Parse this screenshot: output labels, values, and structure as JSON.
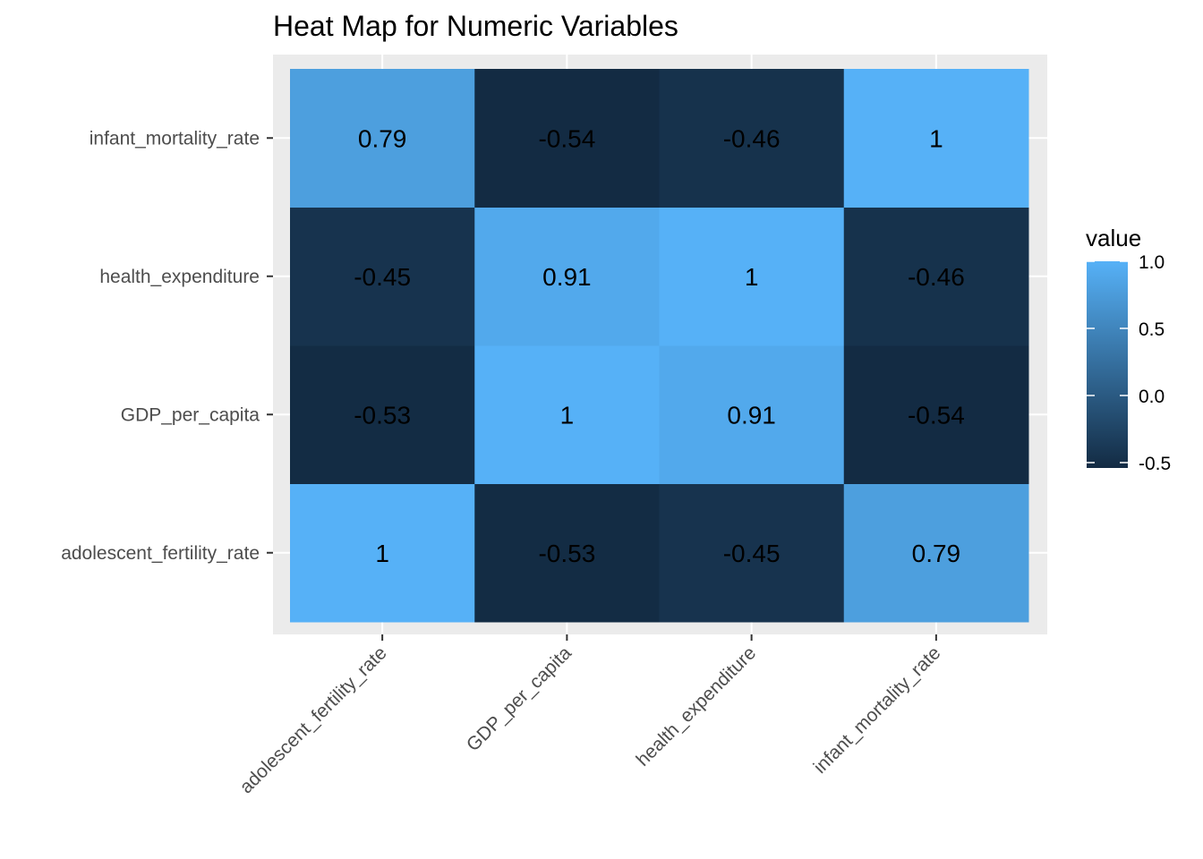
{
  "chart_data": {
    "type": "heatmap",
    "title": "Heat Map for Numeric Variables",
    "xlabel": "",
    "ylabel": "",
    "x_categories": [
      "adolescent_fertility_rate",
      "GDP_per_capita",
      "health_expenditure",
      "infant_mortality_rate"
    ],
    "y_categories": [
      "adolescent_fertility_rate",
      "GDP_per_capita",
      "health_expenditure",
      "infant_mortality_rate"
    ],
    "values": [
      [
        1,
        -0.53,
        -0.45,
        0.79
      ],
      [
        -0.53,
        1,
        0.91,
        -0.54
      ],
      [
        -0.45,
        0.91,
        1,
        -0.46
      ],
      [
        0.79,
        -0.54,
        -0.46,
        1
      ]
    ],
    "labels": [
      [
        "1",
        "-0.53",
        "-0.45",
        "0.79"
      ],
      [
        "-0.53",
        "1",
        "0.91",
        "-0.54"
      ],
      [
        "-0.45",
        "0.91",
        "1",
        "-0.46"
      ],
      [
        "0.79",
        "-0.54",
        "-0.46",
        "1"
      ]
    ],
    "legend": {
      "title": "value",
      "position": "right",
      "ticks": [
        1.0,
        0.5,
        0.0,
        -0.5
      ],
      "tick_labels": [
        "1.0",
        "0.5",
        "0.0",
        "-0.5"
      ],
      "range": [
        -0.54,
        1
      ]
    },
    "colors": {
      "low": "#132B43",
      "high": "#56B1F7",
      "panel_background": "#EBEBEB",
      "grid": "#FFFFFF"
    },
    "grid": true
  }
}
